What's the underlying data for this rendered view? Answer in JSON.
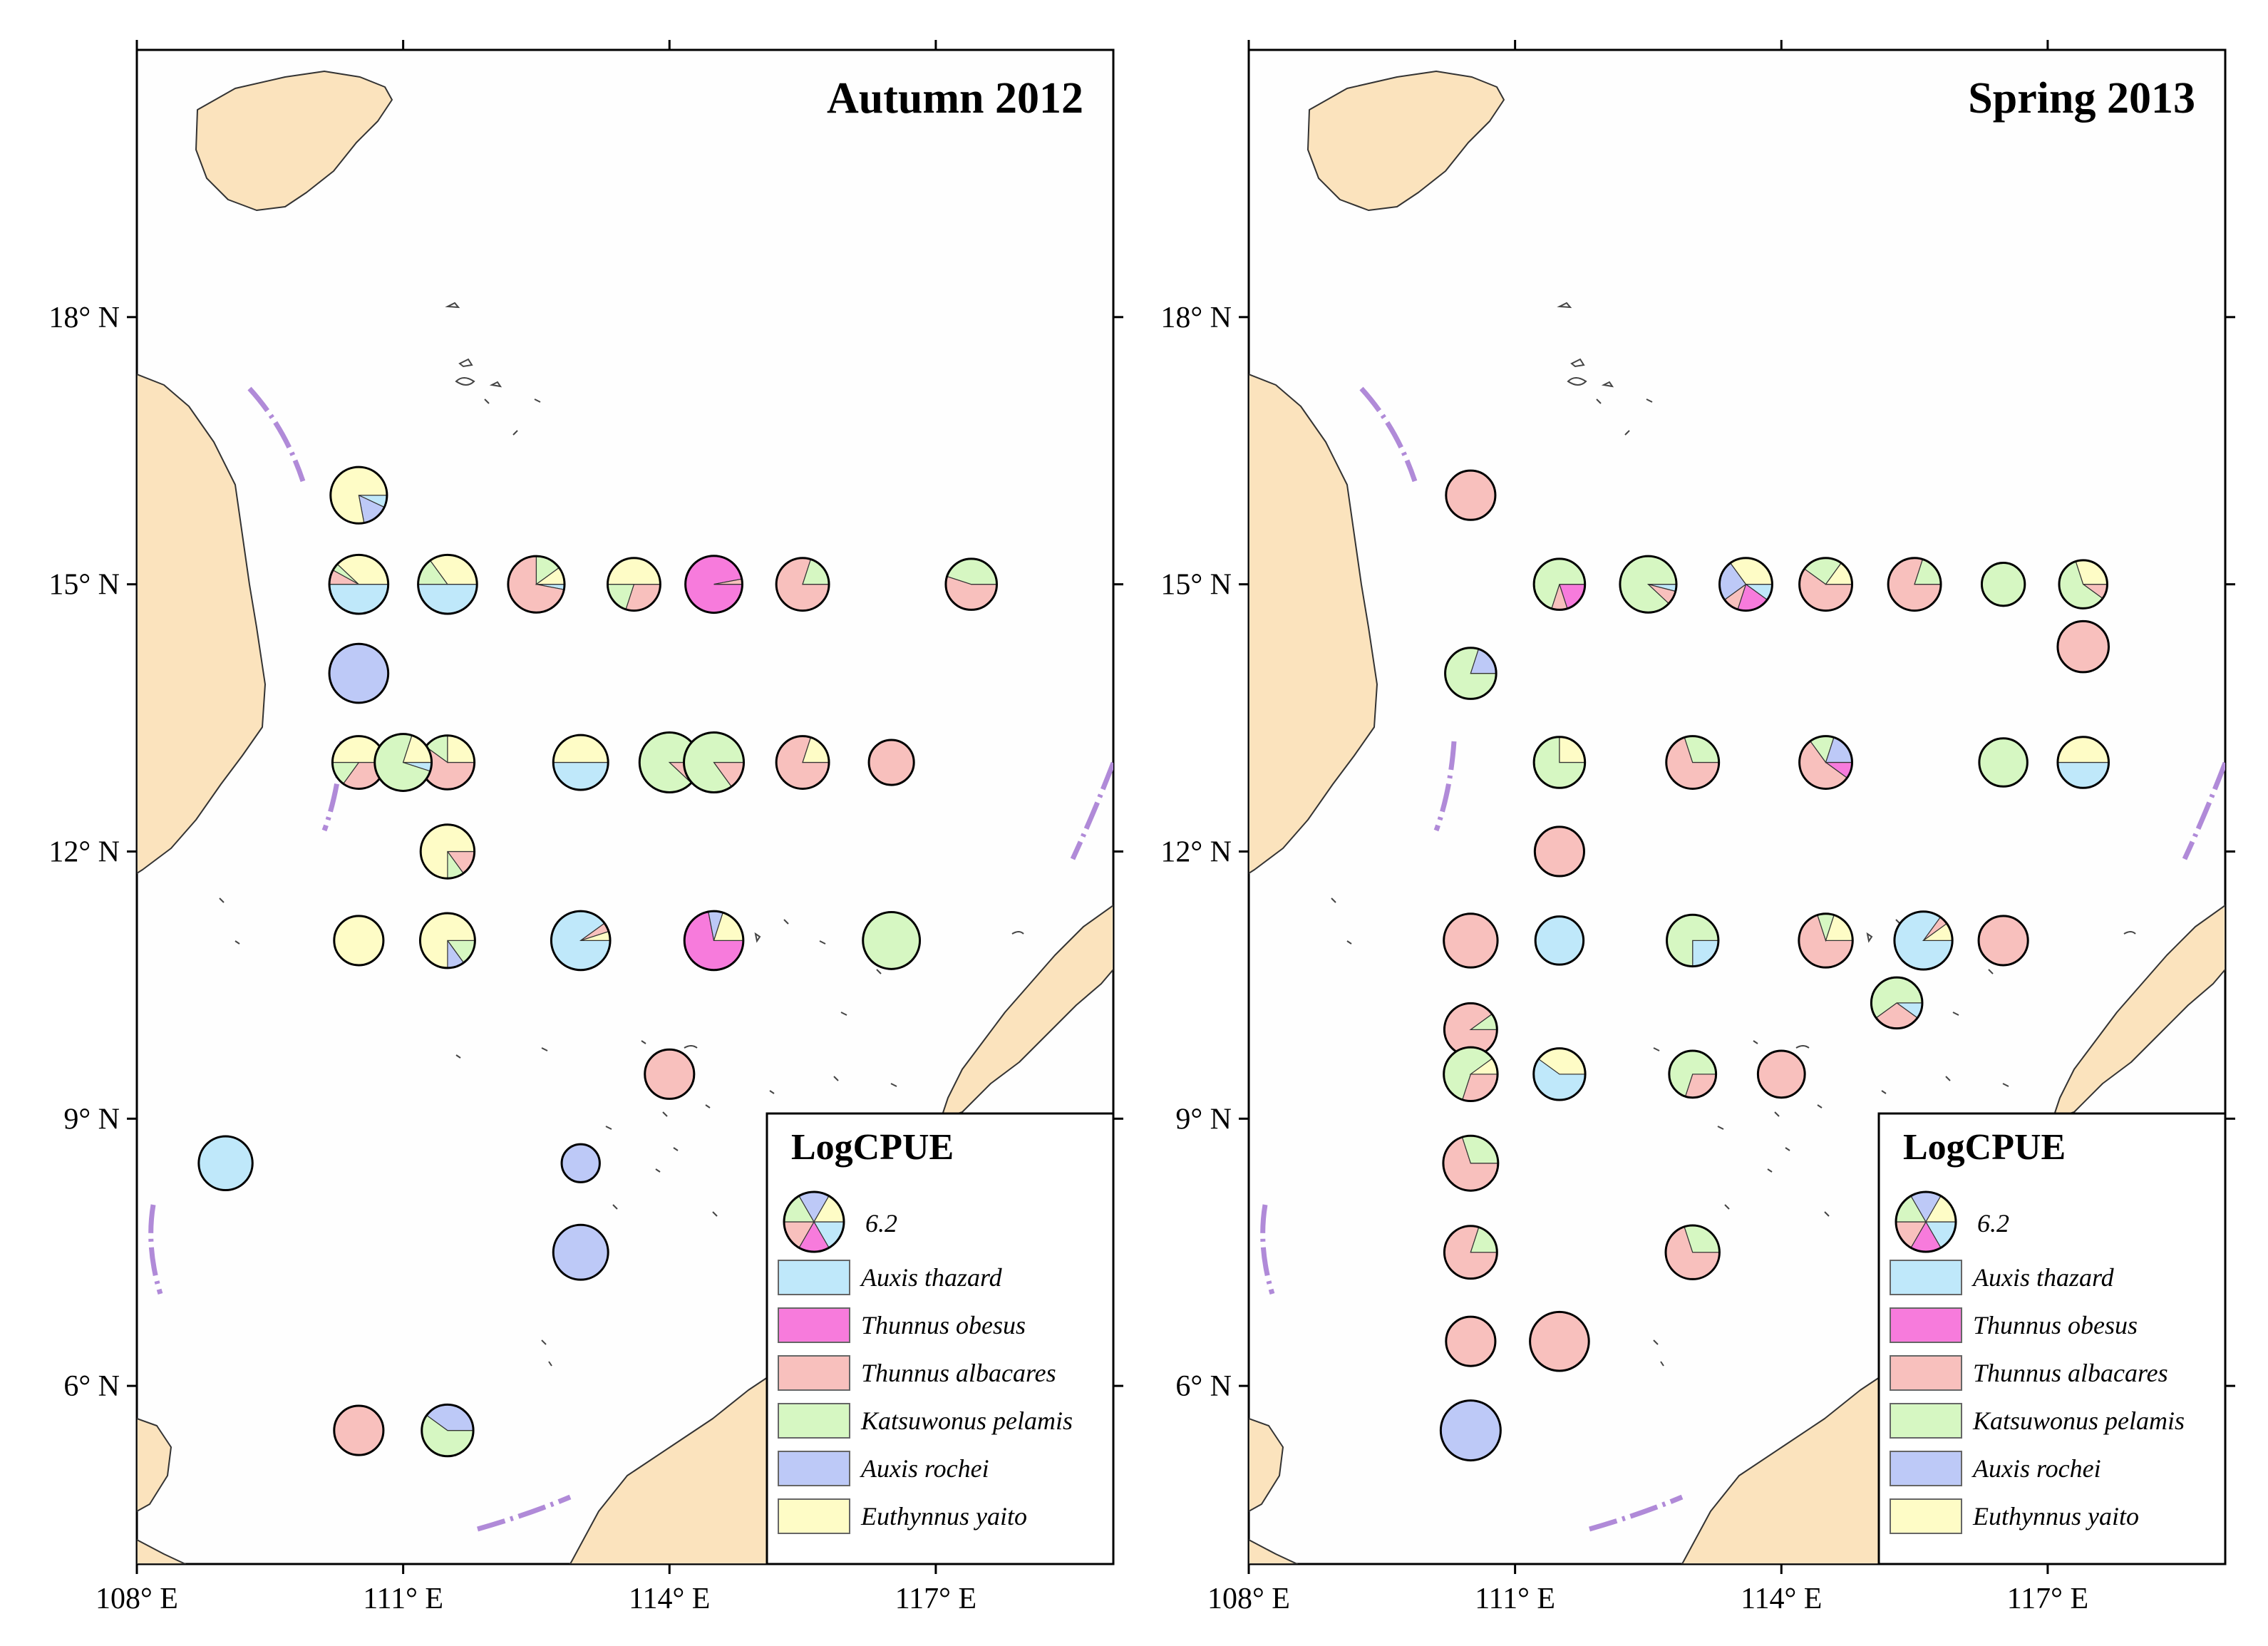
{
  "figure": {
    "x_tick_labels": [
      "108° E",
      "111° E",
      "114° E",
      "117° E"
    ],
    "y_tick_labels": [
      "6° N",
      "9° N",
      "12° N",
      "15° N",
      "18° N"
    ],
    "lon_range": [
      108,
      119
    ],
    "lat_range": [
      4,
      21
    ],
    "x_ticks": [
      108,
      111,
      114,
      117
    ],
    "y_ticks": [
      6,
      9,
      12,
      15,
      18
    ]
  },
  "legend": {
    "title": "LogCPUE",
    "size_value_label": "6.2",
    "reference_value": 6.2
  },
  "species_colors": {
    "thazard": "#bfe8fa",
    "obesus": "#f77bdc",
    "albacares": "#f8c0bd",
    "pelamis": "#d6f7c2",
    "rochei": "#bdc9f7",
    "yaito": "#fefcc6"
  },
  "chart_data": [
    {
      "type": "pie-map",
      "title": "Autumn 2012",
      "legend": [
        "Auxis thazard",
        "Thunnus obesus",
        "Thunnus albacares",
        "Katsuwonus pelamis",
        "Auxis rochei",
        "Euthynnus yaito"
      ],
      "stations": [
        {
          "lon": 110.5,
          "lat": 16.0,
          "logcpue": 5.5,
          "composition": {
            "rochei": 0.15,
            "thazard": 0.07,
            "yaito": 0.78
          }
        },
        {
          "lon": 110.5,
          "lat": 15.0,
          "logcpue": 6.0,
          "composition": {
            "thazard": 0.5,
            "albacares": 0.08,
            "pelamis": 0.04,
            "yaito": 0.38
          }
        },
        {
          "lon": 111.5,
          "lat": 15.0,
          "logcpue": 6.0,
          "composition": {
            "thazard": 0.5,
            "pelamis": 0.15,
            "yaito": 0.35
          }
        },
        {
          "lon": 112.5,
          "lat": 15.0,
          "logcpue": 5.5,
          "composition": {
            "albacares": 0.72,
            "thazard": 0.03,
            "pelamis": 0.15,
            "yaito": 0.1
          }
        },
        {
          "lon": 113.6,
          "lat": 15.0,
          "logcpue": 4.8,
          "composition": {
            "albacares": 0.3,
            "pelamis": 0.2,
            "yaito": 0.5
          }
        },
        {
          "lon": 114.5,
          "lat": 15.0,
          "logcpue": 5.6,
          "composition": {
            "obesus": 0.97,
            "albacares": 0.03
          }
        },
        {
          "lon": 115.5,
          "lat": 15.0,
          "logcpue": 4.8,
          "composition": {
            "albacares": 0.8,
            "pelamis": 0.2
          }
        },
        {
          "lon": 117.4,
          "lat": 15.0,
          "logcpue": 4.5,
          "composition": {
            "albacares": 0.55,
            "pelamis": 0.45
          }
        },
        {
          "lon": 110.5,
          "lat": 14.0,
          "logcpue": 6.0,
          "composition": {
            "rochei": 1.0
          }
        },
        {
          "lon": 110.5,
          "lat": 13.0,
          "logcpue": 4.8,
          "composition": {
            "albacares": 0.35,
            "pelamis": 0.15,
            "yaito": 0.5
          }
        },
        {
          "lon": 111.5,
          "lat": 13.0,
          "logcpue": 5.0,
          "composition": {
            "albacares": 0.6,
            "pelamis": 0.15,
            "yaito": 0.25
          }
        },
        {
          "lon": 111.0,
          "lat": 13.0,
          "logcpue": 5.6,
          "composition": {
            "pelamis": 0.75,
            "thazard": 0.05,
            "yaito": 0.2
          }
        },
        {
          "lon": 113.0,
          "lat": 13.0,
          "logcpue": 5.2,
          "composition": {
            "thazard": 0.5,
            "yaito": 0.5
          }
        },
        {
          "lon": 114.0,
          "lat": 13.0,
          "logcpue": 6.2,
          "composition": {
            "pelamis": 0.88,
            "albacares": 0.12
          }
        },
        {
          "lon": 114.5,
          "lat": 13.0,
          "logcpue": 6.2,
          "composition": {
            "pelamis": 0.85,
            "albacares": 0.15
          }
        },
        {
          "lon": 115.5,
          "lat": 13.0,
          "logcpue": 4.8,
          "composition": {
            "albacares": 0.8,
            "yaito": 0.2
          }
        },
        {
          "lon": 116.5,
          "lat": 13.0,
          "logcpue": 3.5,
          "composition": {
            "albacares": 1.0
          }
        },
        {
          "lon": 111.5,
          "lat": 12.0,
          "logcpue": 5.0,
          "composition": {
            "yaito": 0.75,
            "pelamis": 0.1,
            "albacares": 0.15
          }
        },
        {
          "lon": 110.5,
          "lat": 11.0,
          "logcpue": 4.2,
          "composition": {
            "yaito": 1.0
          }
        },
        {
          "lon": 111.5,
          "lat": 11.0,
          "logcpue": 5.2,
          "composition": {
            "yaito": 0.75,
            "rochei": 0.1,
            "pelamis": 0.15
          }
        },
        {
          "lon": 113.0,
          "lat": 11.0,
          "logcpue": 6.0,
          "composition": {
            "thazard": 0.9,
            "albacares": 0.05,
            "yaito": 0.05
          }
        },
        {
          "lon": 114.5,
          "lat": 11.0,
          "logcpue": 6.0,
          "composition": {
            "obesus": 0.72,
            "rochei": 0.08,
            "yaito": 0.2
          }
        },
        {
          "lon": 116.5,
          "lat": 11.0,
          "logcpue": 5.6,
          "composition": {
            "pelamis": 1.0
          }
        },
        {
          "lon": 114.0,
          "lat": 9.5,
          "logcpue": 4.2,
          "composition": {
            "albacares": 1.0
          }
        },
        {
          "lon": 109.0,
          "lat": 8.5,
          "logcpue": 5.0,
          "composition": {
            "thazard": 1.0
          }
        },
        {
          "lon": 113.0,
          "lat": 8.5,
          "logcpue": 2.5,
          "composition": {
            "rochei": 1.0
          }
        },
        {
          "lon": 113.0,
          "lat": 7.5,
          "logcpue": 5.2,
          "composition": {
            "rochei": 1.0
          }
        },
        {
          "lon": 110.5,
          "lat": 5.5,
          "logcpue": 4.2,
          "composition": {
            "albacares": 1.0
          }
        },
        {
          "lon": 111.5,
          "lat": 5.5,
          "logcpue": 4.6,
          "composition": {
            "pelamis": 0.6,
            "rochei": 0.4
          }
        }
      ]
    },
    {
      "type": "pie-map",
      "title": "Spring 2013",
      "legend": [
        "Auxis thazard",
        "Thunnus obesus",
        "Thunnus albacares",
        "Katsuwonus pelamis",
        "Auxis rochei",
        "Euthynnus yaito"
      ],
      "stations": [
        {
          "lon": 110.5,
          "lat": 16.0,
          "logcpue": 4.2,
          "composition": {
            "albacares": 1.0
          }
        },
        {
          "lon": 111.5,
          "lat": 15.0,
          "logcpue": 4.5,
          "composition": {
            "pelamis": 0.7,
            "obesus": 0.2,
            "albacares": 0.1
          }
        },
        {
          "lon": 112.5,
          "lat": 15.0,
          "logcpue": 5.5,
          "composition": {
            "pelamis": 0.88,
            "albacares": 0.08,
            "thazard": 0.04
          }
        },
        {
          "lon": 113.6,
          "lat": 15.0,
          "logcpue": 4.8,
          "composition": {
            "obesus": 0.2,
            "albacares": 0.1,
            "rochei": 0.25,
            "thazard": 0.1,
            "yaito": 0.35
          }
        },
        {
          "lon": 114.5,
          "lat": 15.0,
          "logcpue": 4.8,
          "composition": {
            "albacares": 0.6,
            "pelamis": 0.25,
            "yaito": 0.15
          }
        },
        {
          "lon": 115.5,
          "lat": 15.0,
          "logcpue": 4.8,
          "composition": {
            "albacares": 0.8,
            "pelamis": 0.2
          }
        },
        {
          "lon": 116.5,
          "lat": 15.0,
          "logcpue": 3.2,
          "composition": {
            "pelamis": 1.0
          }
        },
        {
          "lon": 117.4,
          "lat": 15.0,
          "logcpue": 4.0,
          "composition": {
            "pelamis": 0.6,
            "albacares": 0.1,
            "yaito": 0.3
          }
        },
        {
          "lon": 117.4,
          "lat": 14.3,
          "logcpue": 4.5,
          "composition": {
            "albacares": 1.0
          }
        },
        {
          "lon": 110.5,
          "lat": 14.0,
          "logcpue": 4.5,
          "composition": {
            "pelamis": 0.8,
            "rochei": 0.2
          }
        },
        {
          "lon": 111.5,
          "lat": 13.0,
          "logcpue": 4.5,
          "composition": {
            "pelamis": 0.75,
            "yaito": 0.25
          }
        },
        {
          "lon": 113.0,
          "lat": 13.0,
          "logcpue": 4.8,
          "composition": {
            "albacares": 0.7,
            "pelamis": 0.3
          }
        },
        {
          "lon": 114.5,
          "lat": 13.0,
          "logcpue": 4.8,
          "composition": {
            "albacares": 0.55,
            "obesus": 0.1,
            "rochei": 0.2,
            "pelamis": 0.15
          }
        },
        {
          "lon": 116.5,
          "lat": 13.0,
          "logcpue": 4.0,
          "composition": {
            "pelamis": 1.0
          }
        },
        {
          "lon": 117.4,
          "lat": 13.0,
          "logcpue": 4.5,
          "composition": {
            "thazard": 0.5,
            "yaito": 0.5
          }
        },
        {
          "lon": 111.5,
          "lat": 12.0,
          "logcpue": 4.2,
          "composition": {
            "albacares": 1.0
          }
        },
        {
          "lon": 110.5,
          "lat": 11.0,
          "logcpue": 5.0,
          "composition": {
            "albacares": 1.0
          }
        },
        {
          "lon": 111.5,
          "lat": 11.0,
          "logcpue": 4.0,
          "composition": {
            "thazard": 1.0
          }
        },
        {
          "lon": 113.0,
          "lat": 11.0,
          "logcpue": 4.6,
          "composition": {
            "pelamis": 0.75,
            "thazard": 0.25
          }
        },
        {
          "lon": 114.5,
          "lat": 11.0,
          "logcpue": 5.0,
          "composition": {
            "albacares": 0.7,
            "pelamis": 0.1,
            "yaito": 0.2
          }
        },
        {
          "lon": 115.6,
          "lat": 11.0,
          "logcpue": 5.8,
          "composition": {
            "thazard": 0.85,
            "albacares": 0.05,
            "yaito": 0.1
          }
        },
        {
          "lon": 116.5,
          "lat": 11.0,
          "logcpue": 4.2,
          "composition": {
            "albacares": 1.0
          }
        },
        {
          "lon": 115.3,
          "lat": 10.3,
          "logcpue": 4.5,
          "composition": {
            "pelamis": 0.6,
            "albacares": 0.3,
            "thazard": 0.1
          }
        },
        {
          "lon": 110.5,
          "lat": 10.0,
          "logcpue": 4.8,
          "composition": {
            "albacares": 0.9,
            "pelamis": 0.1
          }
        },
        {
          "lon": 110.5,
          "lat": 9.5,
          "logcpue": 5.0,
          "composition": {
            "pelamis": 0.6,
            "albacares": 0.3,
            "yaito": 0.1
          }
        },
        {
          "lon": 111.5,
          "lat": 9.5,
          "logcpue": 4.6,
          "composition": {
            "thazard": 0.6,
            "yaito": 0.4
          }
        },
        {
          "lon": 113.0,
          "lat": 9.5,
          "logcpue": 3.8,
          "composition": {
            "pelamis": 0.7,
            "albacares": 0.3
          }
        },
        {
          "lon": 114.0,
          "lat": 9.5,
          "logcpue": 3.8,
          "composition": {
            "albacares": 1.0
          }
        },
        {
          "lon": 110.5,
          "lat": 8.5,
          "logcpue": 5.2,
          "composition": {
            "albacares": 0.7,
            "pelamis": 0.3
          }
        },
        {
          "lon": 110.5,
          "lat": 7.5,
          "logcpue": 4.8,
          "composition": {
            "albacares": 0.8,
            "pelamis": 0.2
          }
        },
        {
          "lon": 113.0,
          "lat": 7.5,
          "logcpue": 5.0,
          "composition": {
            "albacares": 0.7,
            "pelamis": 0.3
          }
        },
        {
          "lon": 110.5,
          "lat": 6.5,
          "logcpue": 4.2,
          "composition": {
            "albacares": 1.0
          }
        },
        {
          "lon": 111.5,
          "lat": 6.5,
          "logcpue": 6.0,
          "composition": {
            "albacares": 1.0
          }
        },
        {
          "lon": 110.5,
          "lat": 5.5,
          "logcpue": 6.2,
          "composition": {
            "rochei": 1.0
          }
        }
      ]
    }
  ]
}
